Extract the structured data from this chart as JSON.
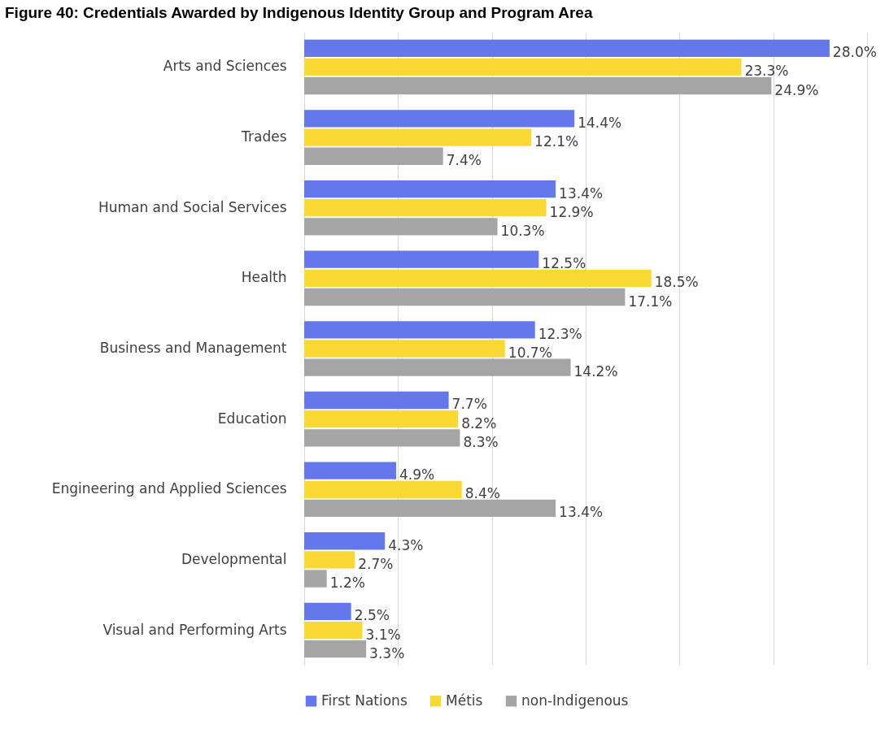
{
  "chart_data": {
    "type": "bar",
    "orientation": "horizontal",
    "title": "Figure 40: Credentials Awarded by Indigenous Identity Group and Program Area",
    "categories": [
      "Arts and Sciences",
      "Trades",
      "Human and Social Services",
      "Health",
      "Business and Management",
      "Education",
      "Engineering and Applied Sciences",
      "Developmental",
      "Visual and Performing Arts"
    ],
    "series": [
      {
        "name": "First Nations",
        "color": "#6478ec",
        "values": [
          28.0,
          14.4,
          13.4,
          12.5,
          12.3,
          7.7,
          4.9,
          4.3,
          2.5
        ],
        "value_labels": [
          "28.0%",
          "14.4%",
          "13.4%",
          "12.5%",
          "12.3%",
          "7.7%",
          "4.9%",
          "4.3%",
          "2.5%"
        ]
      },
      {
        "name": "Métis",
        "color": "#fad934",
        "values": [
          23.3,
          12.1,
          12.9,
          18.5,
          10.7,
          8.2,
          8.4,
          2.7,
          3.1
        ],
        "value_labels": [
          "23.3%",
          "12.1%",
          "12.9%",
          "18.5%",
          "10.7%",
          "8.2%",
          "8.4%",
          "2.7%",
          "3.1%"
        ]
      },
      {
        "name": "non-Indigenous",
        "color": "#a5a5a5",
        "values": [
          24.9,
          7.4,
          10.3,
          17.1,
          14.2,
          8.3,
          13.4,
          1.2,
          3.3
        ],
        "value_labels": [
          "24.9%",
          "7.4%",
          "10.3%",
          "17.1%",
          "14.2%",
          "8.3%",
          "13.4%",
          "1.2%",
          "3.3%"
        ]
      }
    ],
    "xlim": [
      0,
      30
    ],
    "xticks": [
      {
        "value": 0,
        "label": null
      },
      {
        "value": 5,
        "label": null
      },
      {
        "value": 10,
        "label": null
      },
      {
        "value": 15,
        "label": null
      },
      {
        "value": 20,
        "label": null
      },
      {
        "value": 25,
        "label": null
      },
      {
        "value": 30,
        "label": null
      }
    ],
    "grid": "x",
    "legend": "bottom",
    "tick_labels": "y"
  }
}
